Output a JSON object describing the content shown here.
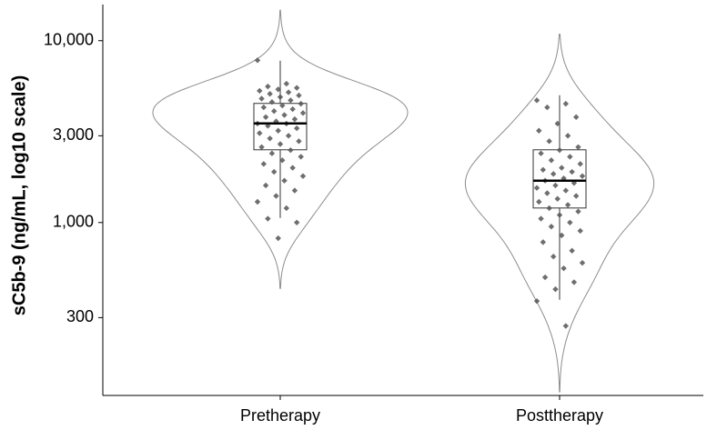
{
  "chart_data": {
    "type": "violin",
    "y_label": "sC5b-9 (ng/mL, log10 scale)",
    "categories": [
      "Pretherapy",
      "Posttherapy"
    ],
    "log_scale": true,
    "ylim": [
      112,
      15800
    ],
    "yticks": [
      300,
      {
        "value": 1000,
        "label": "1,000"
      },
      {
        "value": 3000,
        "label": "3,000"
      },
      {
        "value": 10000,
        "label": "10,000"
      }
    ],
    "point_color": "#555555",
    "violin_color": "#8c8c8c",
    "box_color": "#333333",
    "series": [
      {
        "values": [
          7800,
          5800,
          5600,
          5500,
          5400,
          5300,
          5200,
          5100,
          5000,
          4900,
          4800,
          4700,
          4600,
          4500,
          4400,
          4300,
          4200,
          4100,
          4000,
          3900,
          3800,
          3700,
          3600,
          3500,
          3500,
          3400,
          3300,
          3200,
          3100,
          3000,
          2900,
          2800,
          2700,
          2600,
          2500,
          2400,
          2300,
          2200,
          2100,
          2000,
          1900,
          1800,
          1700,
          1600,
          1500,
          1400,
          1300,
          1200,
          1050,
          1000,
          820
        ],
        "box": {
          "low": 1060,
          "q1": 2512,
          "median": 3508,
          "q3": 4519,
          "high": 7762
        }
      },
      {
        "values": [
          4700,
          4500,
          4300,
          3800,
          3500,
          3200,
          3000,
          2800,
          2600,
          2500,
          2400,
          2300,
          2200,
          2100,
          2000,
          1950,
          1900,
          1850,
          1800,
          1750,
          1700,
          1650,
          1600,
          1550,
          1500,
          1450,
          1400,
          1350,
          1300,
          1250,
          1200,
          1150,
          1100,
          1050,
          1000,
          950,
          900,
          850,
          780,
          700,
          650,
          600,
          560,
          500,
          470,
          430,
          370,
          270
        ],
        "box": {
          "low": 376,
          "q1": 1202,
          "median": 1698,
          "q3": 2512,
          "high": 5012
        }
      }
    ]
  }
}
